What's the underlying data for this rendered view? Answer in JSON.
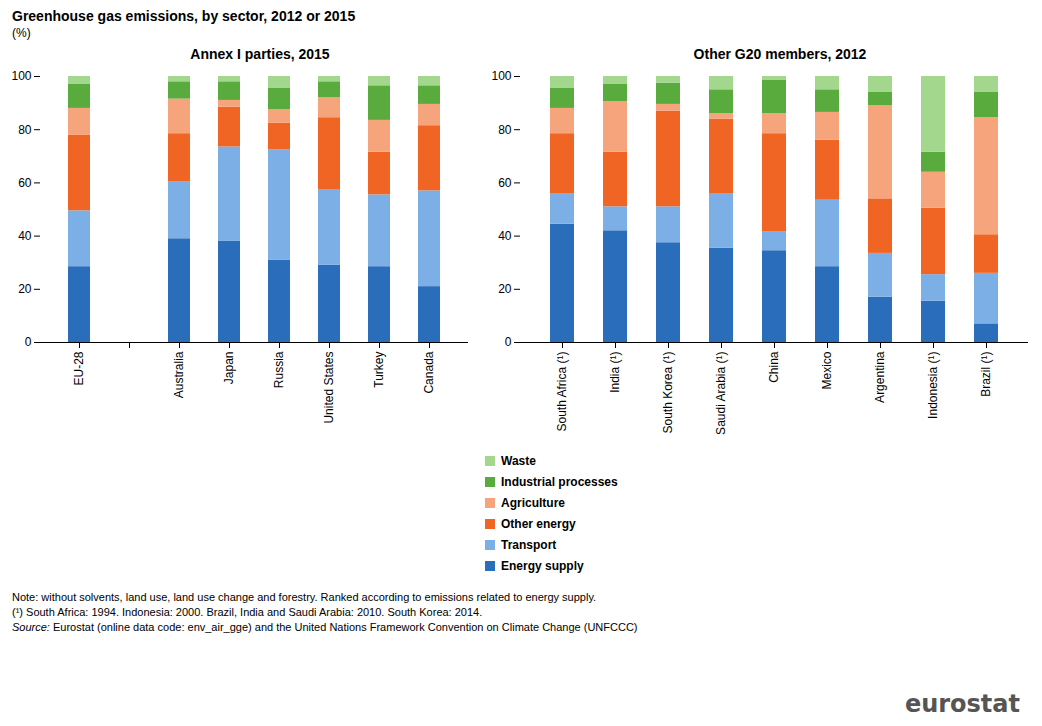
{
  "title": "Greenhouse gas emissions, by sector, 2012 or 2015",
  "subtitle": "(%)",
  "notes": [
    "Note: without solvents, land use, land use change and forestry. Ranked according to emissions related to energy supply.",
    "(¹) South Africa: 1994. Indonesia: 2000. Brazil, India and Saudi Arabia: 2010. South Korea: 2014."
  ],
  "source": {
    "label": "Source:",
    "text": "Eurostat (online data code: env_air_gge) and the United Nations Framework Convention on Climate Change (UNFCCC)"
  },
  "logo": "eurostat",
  "chart_data": [
    {
      "type": "bar",
      "title": "Annex I parties, 2015",
      "stacked": true,
      "grid": false,
      "legend": false,
      "categories": [
        "EU-28",
        null,
        "Australia",
        "Japan",
        "Russia",
        "United States",
        "Turkey",
        "Canada"
      ],
      "ylim": [
        0,
        100
      ],
      "yticks": [
        0,
        20,
        40,
        60,
        80,
        100
      ],
      "series": [
        {
          "name": "Energy supply",
          "color": "#2a6ebb",
          "values": [
            28.5,
            null,
            39,
            38,
            31,
            29,
            28.5,
            21
          ]
        },
        {
          "name": "Transport",
          "color": "#7cafe6",
          "values": [
            21,
            null,
            21.5,
            35.5,
            41.5,
            28.5,
            27,
            36
          ]
        },
        {
          "name": "Other energy",
          "color": "#f06424",
          "values": [
            28.5,
            null,
            18,
            15,
            10,
            27,
            16,
            24.5
          ]
        },
        {
          "name": "Agriculture",
          "color": "#f6a47c",
          "values": [
            10,
            null,
            13,
            2.5,
            5,
            7.5,
            12,
            8
          ]
        },
        {
          "name": "Industrial processes",
          "color": "#5aab3e",
          "values": [
            9,
            null,
            6.5,
            7,
            8,
            6,
            13,
            7
          ]
        },
        {
          "name": "Waste",
          "color": "#a3d78e",
          "values": [
            3,
            null,
            2,
            2,
            4.5,
            2,
            3.5,
            3.5
          ]
        }
      ]
    },
    {
      "type": "bar",
      "title": "Other G20 members, 2012",
      "stacked": true,
      "grid": false,
      "legend": "bottom",
      "categories": [
        "South Africa (¹)",
        "India (¹)",
        "South Korea (¹)",
        "Saudi Arabia (¹)",
        "China",
        "Mexico",
        "Argentina",
        "Indonesia (¹)",
        "Brazil (¹)"
      ],
      "ylim": [
        0,
        100
      ],
      "yticks": [
        0,
        20,
        40,
        60,
        80,
        100
      ],
      "series": [
        {
          "name": "Energy supply",
          "color": "#2a6ebb",
          "values": [
            44.5,
            42,
            37.5,
            35.5,
            34.5,
            28.5,
            17,
            15.5,
            7
          ]
        },
        {
          "name": "Transport",
          "color": "#7cafe6",
          "values": [
            11.5,
            9,
            13.5,
            20.5,
            7,
            25,
            16.5,
            10,
            19
          ]
        },
        {
          "name": "Other energy",
          "color": "#f06424",
          "values": [
            22.5,
            20.5,
            36,
            28,
            37,
            22.5,
            20.5,
            25,
            14.5
          ]
        },
        {
          "name": "Agriculture",
          "color": "#f6a47c",
          "values": [
            9.5,
            19,
            2.5,
            2,
            7.5,
            10.5,
            35,
            13.5,
            44
          ]
        },
        {
          "name": "Industrial processes",
          "color": "#5aab3e",
          "values": [
            7.5,
            6.5,
            8,
            9,
            12.5,
            8.5,
            5,
            7.5,
            9.5
          ]
        },
        {
          "name": "Waste",
          "color": "#a3d78e",
          "values": [
            4.5,
            3,
            2.5,
            5,
            1.5,
            5,
            6,
            28.5,
            6
          ]
        }
      ]
    }
  ]
}
